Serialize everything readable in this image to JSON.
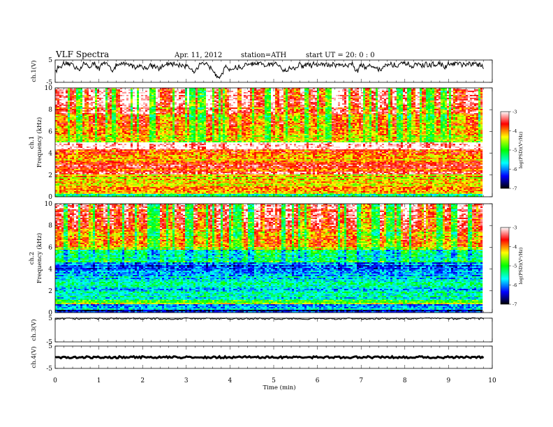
{
  "header": {
    "title": "VLF  Spectra",
    "date": "Apr. 11, 2012",
    "station": "station=ATH",
    "start": "start  UT  =   20: 0  : 0"
  },
  "chart_data": [
    {
      "type": "line",
      "panel": "ch1-waveform",
      "ylabel": "ch.1(V)",
      "ylim": [
        -5,
        5
      ],
      "yticks": [
        5,
        -5
      ],
      "x_range_min": [
        0,
        9.8
      ],
      "trace": "noisy waveform, mostly between -5 and 3 V"
    },
    {
      "type": "heatmap",
      "panel": "ch1-spectrogram",
      "ylabel": "Frequency  (kHz)",
      "ylabel2": "ch.1",
      "ylim": [
        0,
        10
      ],
      "yticks": [
        0,
        2,
        4,
        6,
        8,
        10
      ],
      "x_range_min": [
        0,
        9.8
      ],
      "colorbar": {
        "label": "log(PSD)(V²/Hz)",
        "ticks": [
          -3,
          -4,
          -5,
          -6,
          -7
        ],
        "range": [
          -7,
          -3
        ]
      },
      "bands": [
        {
          "from": 0.0,
          "to": 0.3,
          "level": -5.2
        },
        {
          "from": 0.3,
          "to": 1.0,
          "level": -4.0
        },
        {
          "from": 1.0,
          "to": 2.0,
          "level": -4.3
        },
        {
          "from": 2.0,
          "to": 3.3,
          "level": -3.7
        },
        {
          "from": 3.3,
          "to": 4.4,
          "level": -4.2
        },
        {
          "from": 4.4,
          "to": 5.0,
          "level": -3.6
        },
        {
          "from": 5.0,
          "to": 7.6,
          "level": -5.0
        },
        {
          "from": 7.6,
          "to": 10.0,
          "level": -4.9
        }
      ]
    },
    {
      "type": "heatmap",
      "panel": "ch2-spectrogram",
      "ylabel": "Frequency  (kHz)",
      "ylabel2": "ch.2",
      "ylim": [
        0,
        10
      ],
      "yticks": [
        0,
        2,
        4,
        6,
        8,
        10
      ],
      "x_range_min": [
        0,
        9.8
      ],
      "colorbar": {
        "label": "log(PSD)(V²/Hz)",
        "ticks": [
          -3,
          -4,
          -5,
          -6,
          -7
        ],
        "range": [
          -7,
          -3
        ]
      },
      "bands": [
        {
          "from": 0.0,
          "to": 0.3,
          "level": -6.4
        },
        {
          "from": 0.3,
          "to": 0.8,
          "level": -5.8
        },
        {
          "from": 0.8,
          "to": 1.2,
          "level": -4.8
        },
        {
          "from": 1.2,
          "to": 3.3,
          "level": -5.6
        },
        {
          "from": 3.3,
          "to": 3.8,
          "level": -6.0
        },
        {
          "from": 3.8,
          "to": 4.6,
          "level": -6.4
        },
        {
          "from": 4.6,
          "to": 5.8,
          "level": -5.7
        },
        {
          "from": 5.8,
          "to": 10.0,
          "level": -5.1
        }
      ]
    },
    {
      "type": "line",
      "panel": "ch3-waveform",
      "ylabel": "ch.3(V)",
      "ylim": [
        -5,
        5
      ],
      "yticks": [
        5,
        -5
      ],
      "x_range_min": [
        0,
        9.8
      ],
      "trace": "flat near 5 V"
    },
    {
      "type": "line",
      "panel": "ch4-waveform",
      "ylabel": "ch.4(V)",
      "ylim": [
        -5,
        5
      ],
      "yticks": [
        5,
        -5
      ],
      "x_range_min": [
        0,
        9.8
      ],
      "trace": "flat near 0 V"
    }
  ],
  "xaxis": {
    "label": "Time  (min)",
    "ticks": [
      0,
      1,
      2,
      3,
      4,
      5,
      6,
      7,
      8,
      9,
      10
    ],
    "range": [
      0,
      10
    ]
  },
  "colors": {
    "colormap": [
      "#000000",
      "#0000ff",
      "#00ffff",
      "#00ff00",
      "#ffff00",
      "#ff0000",
      "#ffffff"
    ],
    "trace": "#000000"
  }
}
